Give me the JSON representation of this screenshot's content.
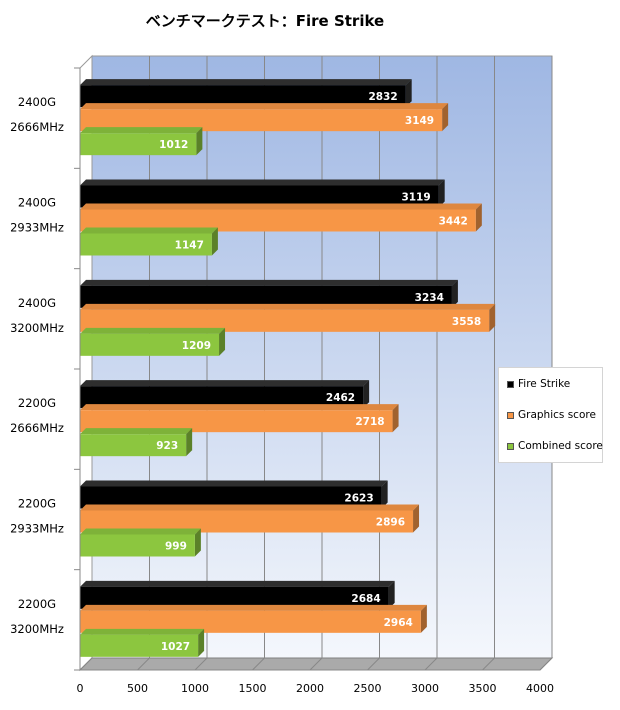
{
  "chart_data": {
    "type": "bar",
    "orientation": "horizontal",
    "title": "ベンチマークテスト：Fire Strike",
    "categories": [
      [
        "2400G",
        "2666MHz"
      ],
      [
        "2400G",
        "2933MHz"
      ],
      [
        "2400G",
        "3200MHz"
      ],
      [
        "2200G",
        "2666MHz"
      ],
      [
        "2200G",
        "2933MHz"
      ],
      [
        "2200G",
        "3200MHz"
      ]
    ],
    "series": [
      {
        "name": "Fire Strike",
        "color": "#000000",
        "values": [
          2832,
          3119,
          3234,
          2462,
          2623,
          2684
        ]
      },
      {
        "name": "Graphics score",
        "color": "#f79646",
        "values": [
          3149,
          3442,
          3558,
          2718,
          2896,
          2964
        ]
      },
      {
        "name": "Combined score",
        "color": "#8cc63f",
        "values": [
          1012,
          1147,
          1209,
          923,
          999,
          1027
        ]
      }
    ],
    "xlim": [
      0,
      4000
    ],
    "xticks": [
      0,
      500,
      1000,
      1500,
      2000,
      2500,
      3000,
      3500,
      4000
    ],
    "grid": true,
    "legend_position": "right",
    "colors": {
      "wall_top": "#9fb7e3",
      "wall_bottom": "#f4f7fc",
      "floor": "#aaaaaa",
      "gridline": "#888888"
    }
  }
}
